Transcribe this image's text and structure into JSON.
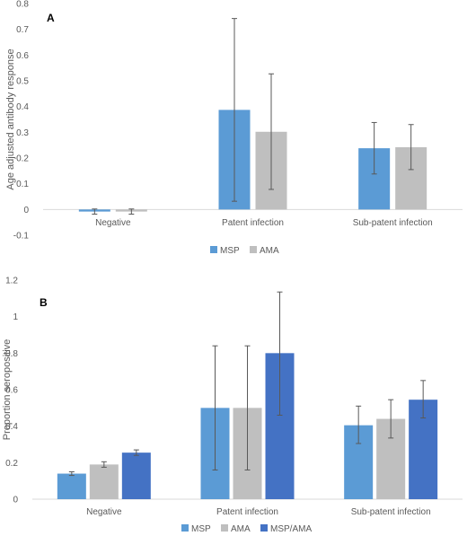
{
  "chart_data": [
    {
      "type": "bar",
      "panel_label": "A",
      "ylabel": "Age adjusted antibody response",
      "categories": [
        "Negative",
        "Patent infection",
        "Sub-patent infection"
      ],
      "ylim": [
        -0.1,
        0.8
      ],
      "yticks": [
        -0.1,
        0,
        0.1,
        0.2,
        0.3,
        0.4,
        0.5,
        0.6,
        0.7,
        0.8
      ],
      "grid": false,
      "legend_position": "bottom",
      "series": [
        {
          "name": "MSP",
          "color": "#5b9bd5",
          "values": [
            -0.008,
            0.387,
            0.238
          ],
          "err_low": [
            -0.018,
            0.032,
            0.138
          ],
          "err_high": [
            0.002,
            0.742,
            0.338
          ]
        },
        {
          "name": "AMA",
          "color": "#bfbfbf",
          "values": [
            -0.008,
            0.302,
            0.242
          ],
          "err_low": [
            -0.018,
            0.078,
            0.155
          ],
          "err_high": [
            0.002,
            0.527,
            0.33
          ]
        }
      ]
    },
    {
      "type": "bar",
      "panel_label": "B",
      "ylabel": "Proportion seropositive",
      "categories": [
        "Negative",
        "Patent infection",
        "Sub-patent infection"
      ],
      "ylim": [
        0,
        1.2
      ],
      "yticks": [
        0,
        0.2,
        0.4,
        0.6,
        0.8,
        1,
        1.2
      ],
      "grid": false,
      "legend_position": "bottom",
      "series": [
        {
          "name": "MSP",
          "color": "#5b9bd5",
          "values": [
            0.14,
            0.5,
            0.405
          ],
          "err_low": [
            0.13,
            0.16,
            0.305
          ],
          "err_high": [
            0.15,
            0.84,
            0.51
          ]
        },
        {
          "name": "AMA",
          "color": "#bfbfbf",
          "values": [
            0.19,
            0.5,
            0.44
          ],
          "err_low": [
            0.175,
            0.16,
            0.335
          ],
          "err_high": [
            0.205,
            0.84,
            0.545
          ]
        },
        {
          "name": "MSP/AMA",
          "color": "#4472c4",
          "values": [
            0.255,
            0.8,
            0.545
          ],
          "err_low": [
            0.24,
            0.46,
            0.445
          ],
          "err_high": [
            0.27,
            1.135,
            0.65
          ]
        }
      ]
    }
  ]
}
